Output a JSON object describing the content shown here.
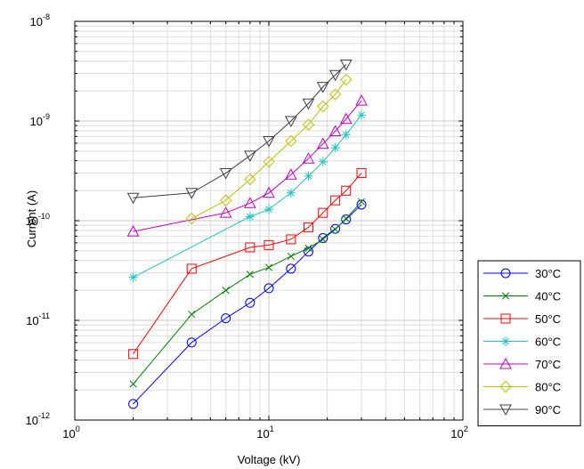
{
  "chart_data": {
    "type": "line",
    "title": "",
    "xlabel": "Voltage (kV)",
    "ylabel": "Current (A)",
    "x_scale": "log",
    "y_scale": "log",
    "xlim": [
      1,
      100
    ],
    "ylim": [
      1e-12,
      1e-08
    ],
    "x_ticks": [
      {
        "base": "10",
        "exp": "0",
        "value": 1
      },
      {
        "base": "10",
        "exp": "1",
        "value": 10
      },
      {
        "base": "10",
        "exp": "2",
        "value": 100
      }
    ],
    "y_ticks": [
      {
        "base": "10",
        "exp": "-12",
        "value": 1e-12
      },
      {
        "base": "10",
        "exp": "-11",
        "value": 1e-11
      },
      {
        "base": "10",
        "exp": "-10",
        "value": 1e-10
      },
      {
        "base": "10",
        "exp": "-9",
        "value": 1e-09
      },
      {
        "base": "10",
        "exp": "-8",
        "value": 1e-08
      }
    ],
    "grid": true,
    "legend_position": "outside-right-bottom",
    "series": [
      {
        "name": "30°C",
        "color": "#0000ff",
        "marker": "circle",
        "x": [
          2,
          4,
          6,
          8,
          10,
          13,
          16,
          19,
          22,
          25,
          30
        ],
        "y": [
          1.45e-12,
          6e-12,
          1.05e-11,
          1.5e-11,
          2.1e-11,
          3.3e-11,
          4.9e-11,
          6.7e-11,
          8.3e-11,
          1.03e-10,
          1.45e-10
        ]
      },
      {
        "name": "40°C",
        "color": "#008000",
        "marker": "x",
        "x": [
          2,
          4,
          6,
          8,
          10,
          13,
          16,
          19,
          22,
          25,
          30
        ],
        "y": [
          2.3e-12,
          1.15e-11,
          2e-11,
          2.9e-11,
          3.4e-11,
          4.4e-11,
          5.3e-11,
          6.5e-11,
          8.2e-11,
          1.05e-10,
          1.55e-10
        ]
      },
      {
        "name": "50°C",
        "color": "#ff0000",
        "marker": "square",
        "x": [
          2,
          4,
          8,
          10,
          13,
          16,
          19,
          22,
          25,
          30
        ],
        "y": [
          4.6e-12,
          3.3e-11,
          5.4e-11,
          5.7e-11,
          6.5e-11,
          8.6e-11,
          1.2e-10,
          1.6e-10,
          2e-10,
          3e-10
        ]
      },
      {
        "name": "60°C",
        "color": "#1fc3c3",
        "marker": "asterisk",
        "x": [
          2,
          8,
          10,
          13,
          16,
          19,
          22,
          25,
          30
        ],
        "y": [
          2.7e-11,
          1.1e-10,
          1.3e-10,
          1.9e-10,
          2.8e-10,
          3.9e-10,
          5.4e-10,
          7.3e-10,
          1.15e-09
        ]
      },
      {
        "name": "70°C",
        "color": "#c000c0",
        "marker": "triangle-up",
        "x": [
          2,
          6,
          8,
          10,
          13,
          16,
          19,
          22,
          25,
          30
        ],
        "y": [
          7.8e-11,
          1.2e-10,
          1.5e-10,
          1.9e-10,
          2.9e-10,
          4.2e-10,
          5.9e-10,
          7.9e-10,
          1.05e-09,
          1.6e-09
        ]
      },
      {
        "name": "80°C",
        "color": "#c0c000",
        "marker": "diamond",
        "x": [
          4,
          6,
          8,
          10,
          13,
          16,
          19,
          22,
          25
        ],
        "y": [
          1.05e-10,
          1.6e-10,
          2.6e-10,
          3.9e-10,
          6.3e-10,
          9.2e-10,
          1.4e-09,
          1.85e-09,
          2.6e-09
        ]
      },
      {
        "name": "90°C",
        "color": "#404040",
        "marker": "triangle-down",
        "x": [
          2,
          4,
          6,
          8,
          10,
          13,
          16,
          19,
          22,
          25
        ],
        "y": [
          1.7e-10,
          1.9e-10,
          3e-10,
          4.5e-10,
          6.3e-10,
          1e-09,
          1.5e-09,
          2.2e-09,
          2.9e-09,
          3.7e-09
        ]
      }
    ]
  }
}
